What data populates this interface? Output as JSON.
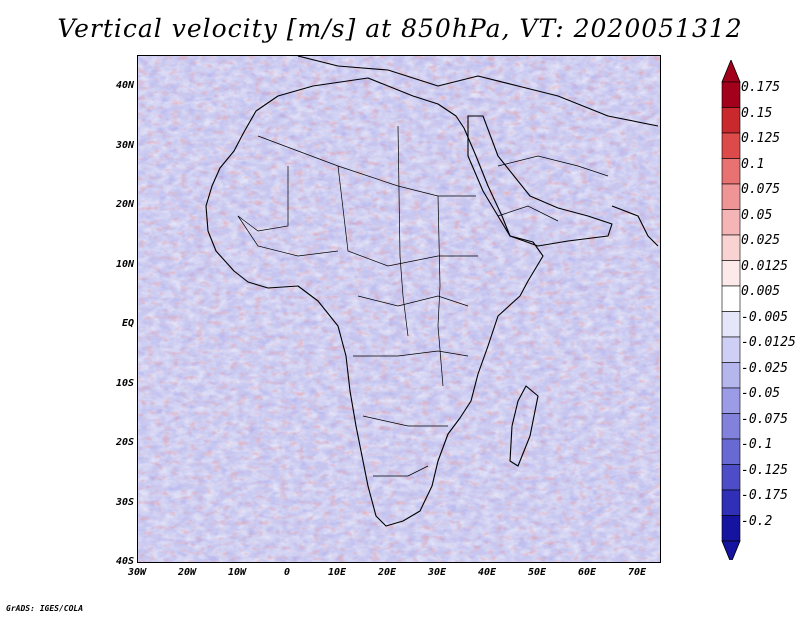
{
  "title": "Vertical velocity [m/s] at 850hPa, VT: 2020051312",
  "map": {
    "lat_labels": [
      "40N",
      "30N",
      "20N",
      "10N",
      "EQ",
      "10S",
      "20S",
      "30S",
      "40S"
    ],
    "lon_labels": [
      "30W",
      "20W",
      "10W",
      "0",
      "10E",
      "20E",
      "30E",
      "40E",
      "50E",
      "60E",
      "70E"
    ],
    "lat_range": [
      -40,
      45
    ],
    "lon_range": [
      -30,
      75
    ]
  },
  "colorbar": {
    "labels": [
      "0.175",
      "0.15",
      "0.125",
      "0.1",
      "0.075",
      "0.05",
      "0.025",
      "0.0125",
      "0.005",
      "-0.005",
      "-0.0125",
      "-0.025",
      "-0.05",
      "-0.075",
      "-0.1",
      "-0.125",
      "-0.175",
      "-0.2"
    ],
    "colors": [
      "#a3001b",
      "#c9282d",
      "#dc4a4a",
      "#e87171",
      "#f09596",
      "#f5b4b5",
      "#f9d2d2",
      "#fce9e9",
      "#ffffff",
      "#e6e6fb",
      "#cfcff5",
      "#b6b6ee",
      "#9c9ce6",
      "#8282dd",
      "#6969d3",
      "#4d4dc7",
      "#2f2fb8",
      "#1414a0"
    ]
  },
  "credit": "GrADS: IGES/COLA"
}
